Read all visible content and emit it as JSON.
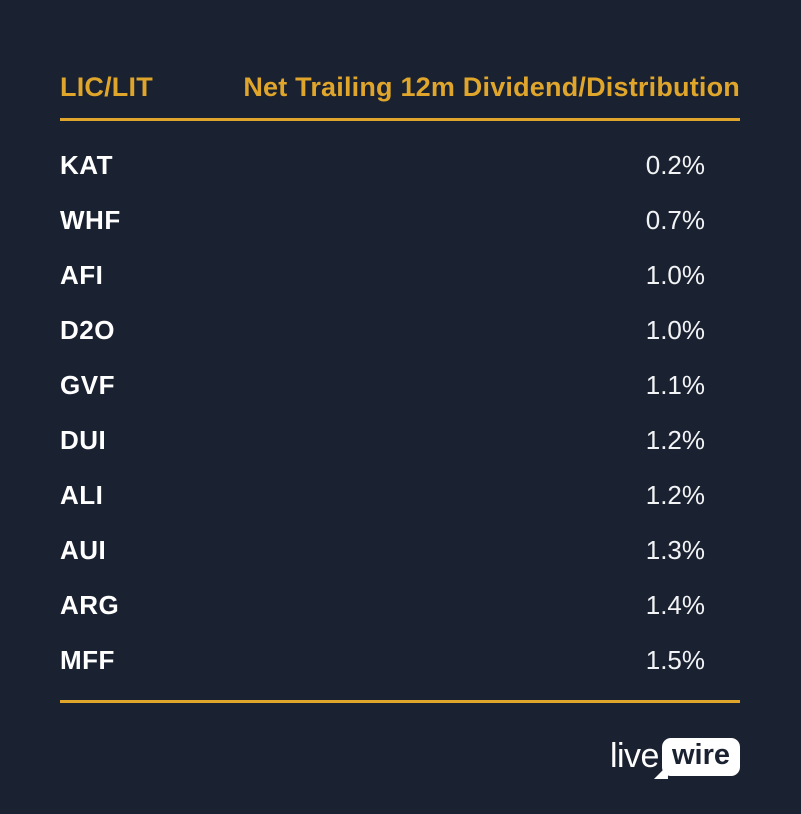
{
  "colors": {
    "background": "#1a2130",
    "accent_gold": "#e0a62b",
    "text_white": "#ffffff",
    "value_text": "#f2f3f5"
  },
  "table": {
    "header": {
      "col1": "LIC/LIT",
      "col2": "Net Trailing 12m Dividend/Distribution"
    },
    "rows": [
      {
        "ticker": "KAT",
        "value": "0.2%"
      },
      {
        "ticker": "WHF",
        "value": "0.7%"
      },
      {
        "ticker": "AFI",
        "value": "1.0%"
      },
      {
        "ticker": "D2O",
        "value": "1.0%"
      },
      {
        "ticker": "GVF",
        "value": "1.1%"
      },
      {
        "ticker": "DUI",
        "value": "1.2%"
      },
      {
        "ticker": "ALI",
        "value": "1.2%"
      },
      {
        "ticker": "AUI",
        "value": "1.3%"
      },
      {
        "ticker": "ARG",
        "value": "1.4%"
      },
      {
        "ticker": "MFF",
        "value": "1.5%"
      }
    ]
  },
  "footer": {
    "logo": {
      "live": "live",
      "wire": "wire"
    }
  },
  "chart_data": {
    "type": "table",
    "title": "Net Trailing 12m Dividend/Distribution",
    "columns": [
      "LIC/LIT",
      "Net Trailing 12m Dividend/Distribution"
    ],
    "categories": [
      "KAT",
      "WHF",
      "AFI",
      "D2O",
      "GVF",
      "DUI",
      "ALI",
      "AUI",
      "ARG",
      "MFF"
    ],
    "values": [
      0.2,
      0.7,
      1.0,
      1.0,
      1.1,
      1.2,
      1.2,
      1.3,
      1.4,
      1.5
    ],
    "unit": "%"
  }
}
